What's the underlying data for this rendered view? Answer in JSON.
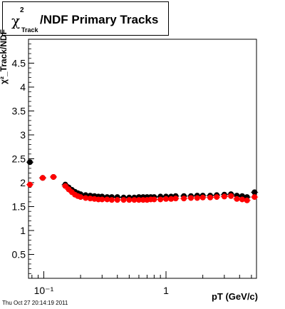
{
  "title": {
    "chi_symbol": "χ",
    "superscript": "2",
    "subscript": "Track",
    "rest": "/NDF  Primary Tracks"
  },
  "footer": "Thu Oct 27 20:14:19 2011",
  "chart_data": {
    "type": "scatter",
    "title": "χ²_Track/NDF  Primary Tracks",
    "xlabel": "pT (GeV/c)",
    "ylabel": "χ²_Track/NDF",
    "xscale": "log",
    "xlim": [
      0.075,
      5.5
    ],
    "ylim": [
      0,
      5
    ],
    "grid": true,
    "x_tick_labels": [
      "10⁻¹",
      "1"
    ],
    "y_ticks": [
      0.5,
      1,
      1.5,
      2,
      2.5,
      3,
      3.5,
      4,
      4.5
    ],
    "y_tick_labels": [
      "0.5",
      "1",
      "1.5",
      "2",
      "2.5",
      "3",
      "3.5",
      "4",
      "4.5"
    ],
    "series": [
      {
        "color": "#000000",
        "marker": "circle",
        "points": [
          [
            0.077,
            2.43
          ],
          [
            0.098,
            2.1
          ],
          [
            0.12,
            2.12
          ],
          [
            0.15,
            1.96
          ],
          [
            0.16,
            1.9
          ],
          [
            0.17,
            1.85
          ],
          [
            0.18,
            1.81
          ],
          [
            0.19,
            1.78
          ],
          [
            0.2,
            1.76
          ],
          [
            0.22,
            1.74
          ],
          [
            0.24,
            1.73
          ],
          [
            0.26,
            1.72
          ],
          [
            0.28,
            1.71
          ],
          [
            0.3,
            1.71
          ],
          [
            0.33,
            1.7
          ],
          [
            0.36,
            1.7
          ],
          [
            0.4,
            1.7
          ],
          [
            0.45,
            1.69
          ],
          [
            0.5,
            1.69
          ],
          [
            0.55,
            1.69
          ],
          [
            0.6,
            1.7
          ],
          [
            0.65,
            1.7
          ],
          [
            0.7,
            1.7
          ],
          [
            0.75,
            1.7
          ],
          [
            0.8,
            1.7
          ],
          [
            0.9,
            1.71
          ],
          [
            1.0,
            1.71
          ],
          [
            1.1,
            1.71
          ],
          [
            1.2,
            1.72
          ],
          [
            1.4,
            1.72
          ],
          [
            1.6,
            1.72
          ],
          [
            1.8,
            1.73
          ],
          [
            2.0,
            1.73
          ],
          [
            2.3,
            1.73
          ],
          [
            2.6,
            1.74
          ],
          [
            3.0,
            1.75
          ],
          [
            3.4,
            1.76
          ],
          [
            3.8,
            1.73
          ],
          [
            4.2,
            1.72
          ],
          [
            4.6,
            1.7
          ],
          [
            5.3,
            1.8
          ]
        ]
      },
      {
        "color": "#ff0000",
        "marker": "circle",
        "points": [
          [
            0.077,
            1.96
          ],
          [
            0.098,
            2.1
          ],
          [
            0.12,
            2.12
          ],
          [
            0.15,
            1.93
          ],
          [
            0.16,
            1.86
          ],
          [
            0.17,
            1.8
          ],
          [
            0.18,
            1.75
          ],
          [
            0.19,
            1.72
          ],
          [
            0.2,
            1.7
          ],
          [
            0.22,
            1.68
          ],
          [
            0.24,
            1.67
          ],
          [
            0.26,
            1.66
          ],
          [
            0.28,
            1.65
          ],
          [
            0.3,
            1.65
          ],
          [
            0.33,
            1.65
          ],
          [
            0.36,
            1.64
          ],
          [
            0.4,
            1.64
          ],
          [
            0.45,
            1.64
          ],
          [
            0.5,
            1.64
          ],
          [
            0.55,
            1.64
          ],
          [
            0.6,
            1.64
          ],
          [
            0.65,
            1.64
          ],
          [
            0.7,
            1.64
          ],
          [
            0.75,
            1.65
          ],
          [
            0.8,
            1.65
          ],
          [
            0.9,
            1.65
          ],
          [
            1.0,
            1.66
          ],
          [
            1.1,
            1.66
          ],
          [
            1.2,
            1.67
          ],
          [
            1.4,
            1.67
          ],
          [
            1.6,
            1.68
          ],
          [
            1.8,
            1.68
          ],
          [
            2.0,
            1.69
          ],
          [
            2.3,
            1.69
          ],
          [
            2.6,
            1.7
          ],
          [
            3.0,
            1.71
          ],
          [
            3.4,
            1.72
          ],
          [
            3.8,
            1.66
          ],
          [
            4.2,
            1.65
          ],
          [
            4.6,
            1.63
          ],
          [
            5.3,
            1.7
          ]
        ]
      }
    ]
  }
}
